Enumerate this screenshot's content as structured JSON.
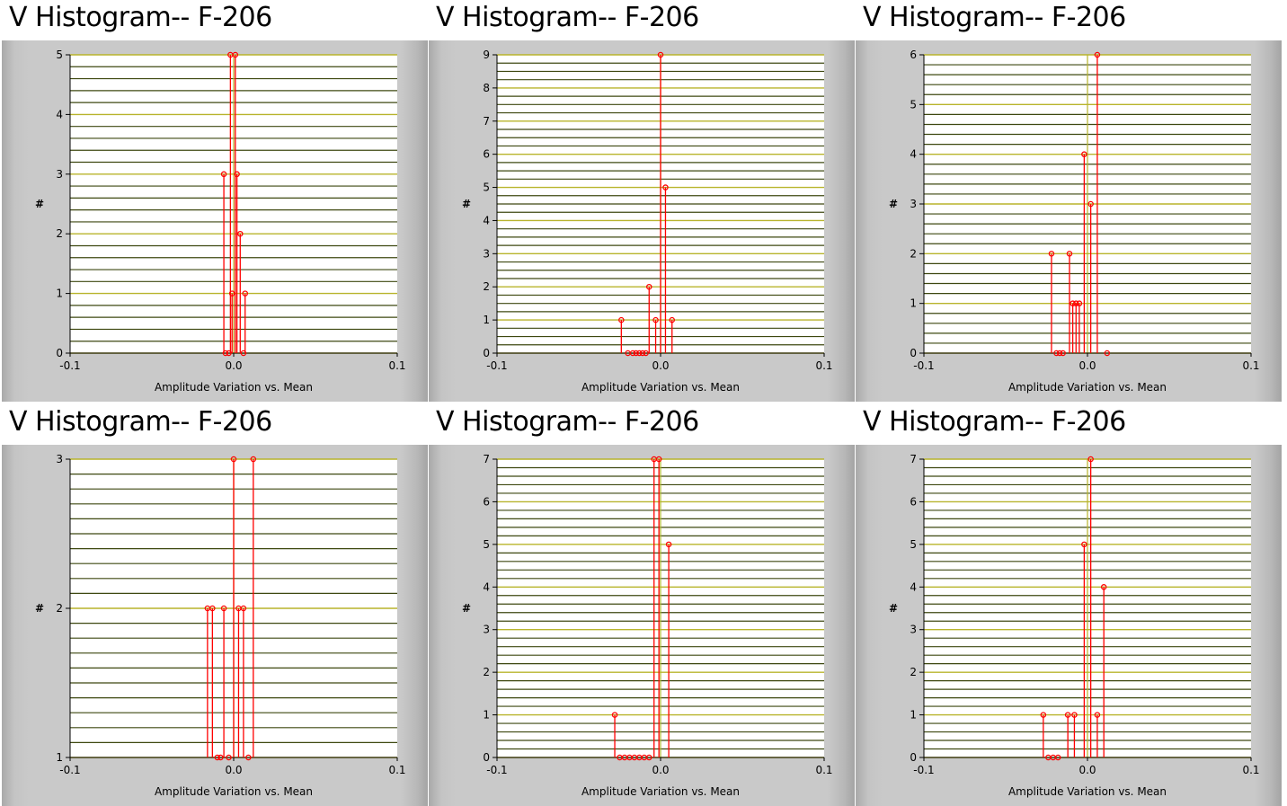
{
  "colors": {
    "grid_dark": "#3e4810",
    "grid_light": "#b8b42c",
    "stem": "#ff0000",
    "plot_bg": "#ffffff",
    "frame": "#c8c8c8"
  },
  "panels": [
    {
      "title": "V Histogram-- F-206",
      "chart_data": {
        "type": "bar",
        "xlabel": "Amplitude Variation vs. Mean",
        "ylabel": "#",
        "xlim": [
          -0.1,
          0.1
        ],
        "xticks": [
          "-0.1",
          "0.0",
          "0.1"
        ],
        "ylim": [
          0,
          5
        ],
        "yticks": [
          "0",
          "1",
          "2",
          "3",
          "4",
          "5"
        ],
        "grid_minor": 5,
        "stems": [
          [
            -0.006,
            3
          ],
          [
            -0.005,
            0
          ],
          [
            -0.003,
            0
          ],
          [
            -0.002,
            5
          ],
          [
            -0.001,
            1
          ],
          [
            0.001,
            5
          ],
          [
            0.002,
            3
          ],
          [
            0.004,
            2
          ],
          [
            0.006,
            0
          ],
          [
            0.007,
            1
          ]
        ]
      }
    },
    {
      "title": "V Histogram-- F-206",
      "chart_data": {
        "type": "bar",
        "xlabel": "Amplitude Variation vs. Mean",
        "ylabel": "#",
        "xlim": [
          -0.1,
          0.1
        ],
        "xticks": [
          "-0.1",
          "0.0",
          "0.1"
        ],
        "ylim": [
          0,
          9
        ],
        "yticks": [
          "0",
          "1",
          "2",
          "3",
          "4",
          "5",
          "6",
          "7",
          "8",
          "9"
        ],
        "grid_minor": 4,
        "stems": [
          [
            -0.024,
            1
          ],
          [
            -0.02,
            0
          ],
          [
            -0.017,
            0
          ],
          [
            -0.015,
            0
          ],
          [
            -0.013,
            0
          ],
          [
            -0.011,
            0
          ],
          [
            -0.009,
            0
          ],
          [
            -0.007,
            2
          ],
          [
            -0.003,
            1
          ],
          [
            0.0,
            9
          ],
          [
            0.003,
            5
          ],
          [
            0.007,
            1
          ]
        ]
      }
    },
    {
      "title": "V Histogram-- F-206",
      "chart_data": {
        "type": "bar",
        "xlabel": "Amplitude Variation vs. Mean",
        "ylabel": "#",
        "xlim": [
          -0.1,
          0.1
        ],
        "xticks": [
          "-0.1",
          "0.0",
          "0.1"
        ],
        "ylim": [
          0,
          6
        ],
        "yticks": [
          "0",
          "1",
          "2",
          "3",
          "4",
          "5",
          "6"
        ],
        "grid_minor": 5,
        "stems": [
          [
            -0.022,
            2
          ],
          [
            -0.019,
            0
          ],
          [
            -0.017,
            0
          ],
          [
            -0.015,
            0
          ],
          [
            -0.011,
            2
          ],
          [
            -0.009,
            1
          ],
          [
            -0.007,
            1
          ],
          [
            -0.005,
            1
          ],
          [
            -0.002,
            4
          ],
          [
            0.002,
            3
          ],
          [
            0.006,
            6
          ],
          [
            0.012,
            0
          ]
        ]
      }
    },
    {
      "title": "V Histogram-- F-206",
      "chart_data": {
        "type": "bar",
        "xlabel": "Amplitude Variation vs. Mean",
        "ylabel": "#",
        "xlim": [
          -0.1,
          0.1
        ],
        "xticks": [
          "-0.1",
          "0.0",
          "0.1"
        ],
        "ylim": [
          1,
          3
        ],
        "yticks": [
          "1",
          "2",
          "3"
        ],
        "grid_minor": 10,
        "stems": [
          [
            -0.016,
            2
          ],
          [
            -0.013,
            2
          ],
          [
            -0.01,
            1
          ],
          [
            -0.008,
            1
          ],
          [
            -0.006,
            2
          ],
          [
            -0.003,
            1
          ],
          [
            0.0,
            3
          ],
          [
            0.003,
            2
          ],
          [
            0.006,
            2
          ],
          [
            0.009,
            1
          ],
          [
            0.012,
            3
          ]
        ]
      }
    },
    {
      "title": "V Histogram-- F-206",
      "chart_data": {
        "type": "bar",
        "xlabel": "Amplitude Variation vs. Mean",
        "ylabel": "#",
        "xlim": [
          -0.1,
          0.1
        ],
        "xticks": [
          "-0.1",
          "0.0",
          "0.1"
        ],
        "ylim": [
          0,
          7
        ],
        "yticks": [
          "0",
          "1",
          "2",
          "3",
          "4",
          "5",
          "6",
          "7"
        ],
        "grid_minor": 5,
        "stems": [
          [
            -0.028,
            1
          ],
          [
            -0.025,
            0
          ],
          [
            -0.022,
            0
          ],
          [
            -0.019,
            0
          ],
          [
            -0.016,
            0
          ],
          [
            -0.013,
            0
          ],
          [
            -0.01,
            0
          ],
          [
            -0.007,
            0
          ],
          [
            -0.004,
            7
          ],
          [
            -0.001,
            7
          ],
          [
            0.005,
            5
          ]
        ]
      }
    },
    {
      "title": "V Histogram-- F-206",
      "chart_data": {
        "type": "bar",
        "xlabel": "Amplitude Variation vs. Mean",
        "ylabel": "#",
        "xlim": [
          -0.1,
          0.1
        ],
        "xticks": [
          "-0.1",
          "0.0",
          "0.1"
        ],
        "ylim": [
          0,
          7
        ],
        "yticks": [
          "0",
          "1",
          "2",
          "3",
          "4",
          "5",
          "6",
          "7"
        ],
        "grid_minor": 5,
        "stems": [
          [
            -0.027,
            1
          ],
          [
            -0.024,
            0
          ],
          [
            -0.021,
            0
          ],
          [
            -0.018,
            0
          ],
          [
            -0.012,
            1
          ],
          [
            -0.008,
            1
          ],
          [
            -0.002,
            5
          ],
          [
            0.002,
            7
          ],
          [
            0.006,
            1
          ],
          [
            0.01,
            4
          ]
        ]
      }
    }
  ]
}
